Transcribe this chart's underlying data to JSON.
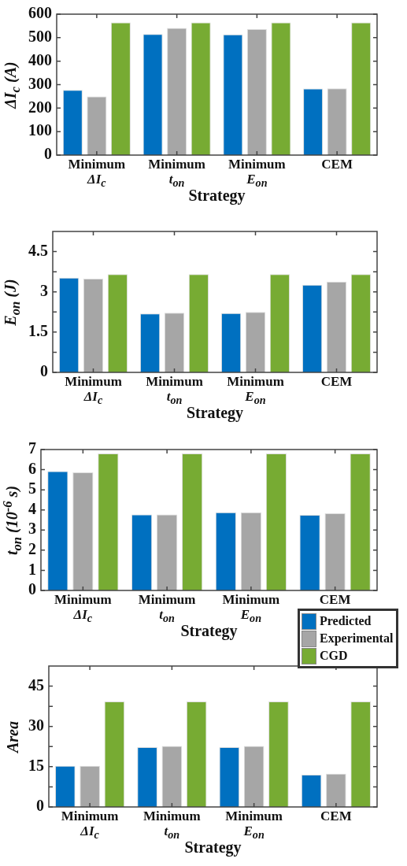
{
  "chart_data": [
    {
      "type": "bar",
      "xlabel": "Strategy",
      "ylabel": "ΔI$_{c}$ (A)",
      "categories": [
        "Minimum ΔI$_{c}$",
        "Minimum t$_{on}$",
        "Minimum E$_{on}$",
        "CEM"
      ],
      "series": [
        {
          "color": "#0070c0",
          "values": [
            277,
            515,
            514,
            283
          ]
        },
        {
          "color": "#a6a6a6",
          "values": [
            250,
            541,
            536,
            284
          ]
        },
        {
          "color": "#77ab33",
          "values": [
            565,
            565,
            565,
            565
          ]
        }
      ],
      "ylim": [
        0,
        600
      ],
      "yticks": [
        0,
        100,
        200,
        300,
        400,
        500,
        600
      ]
    },
    {
      "type": "bar",
      "xlabel": "Strategy",
      "ylabel": "E$_{on}$ (J)",
      "categories": [
        "Minimum ΔI$_{c}$",
        "Minimum t$_{on}$",
        "Minimum E$_{on}$",
        "CEM"
      ],
      "series": [
        {
          "color": "#0070c0",
          "values": [
            3.53,
            2.19,
            2.21,
            3.26
          ]
        },
        {
          "color": "#a6a6a6",
          "values": [
            3.49,
            2.22,
            2.25,
            3.38
          ]
        },
        {
          "color": "#77ab33",
          "values": [
            3.66,
            3.66,
            3.66,
            3.66
          ]
        }
      ],
      "ylim": [
        0,
        5.25
      ],
      "yticks": [
        0,
        {
          "value": 0.75,
          "label": null
        },
        1.5,
        {
          "value": 2.25,
          "label": null
        },
        3,
        {
          "value": 3.75,
          "label": null
        },
        4.5
      ]
    },
    {
      "type": "bar",
      "xlabel": "Strategy",
      "ylabel": "t$_{on}$ (10$^{-6}$ s)",
      "categories": [
        "Minimum ΔI$_{c}$",
        "Minimum t$_{on}$",
        "Minimum E$_{on}$",
        "CEM"
      ],
      "series": [
        {
          "name": "Predicted",
          "color": "#0070c0",
          "values": [
            5.92,
            3.77,
            3.88,
            3.75
          ]
        },
        {
          "name": "Experimental",
          "color": "#a6a6a6",
          "values": [
            5.87,
            3.77,
            3.88,
            3.83
          ]
        },
        {
          "name": "CGD",
          "color": "#77ab33",
          "values": [
            6.8,
            6.8,
            6.8,
            6.8
          ]
        }
      ],
      "ylim": [
        0,
        7
      ],
      "yticks": [
        0,
        1,
        2,
        3,
        4,
        5,
        6,
        7
      ],
      "legend": "bottom right"
    },
    {
      "type": "bar",
      "xlabel": "Strategy",
      "ylabel": "Area",
      "categories": [
        "Minimum ΔI$_{c}$",
        "Minimum t$_{on}$",
        "Minimum E$_{on}$",
        "CEM"
      ],
      "series": [
        {
          "color": "#0070c0",
          "values": [
            15.3,
            22.3,
            22.3,
            12.0
          ]
        },
        {
          "color": "#a6a6a6",
          "values": [
            15.3,
            22.7,
            22.7,
            12.4
          ]
        },
        {
          "color": "#77ab33",
          "values": [
            39.3,
            39.3,
            39.3,
            39.3
          ]
        }
      ],
      "ylim": [
        0,
        52.5
      ],
      "yticks": [
        0,
        {
          "value": 7.5,
          "label": null
        },
        15,
        {
          "value": 22.5,
          "label": null
        },
        30,
        {
          "value": 37.5,
          "label": null
        },
        45
      ]
    }
  ]
}
